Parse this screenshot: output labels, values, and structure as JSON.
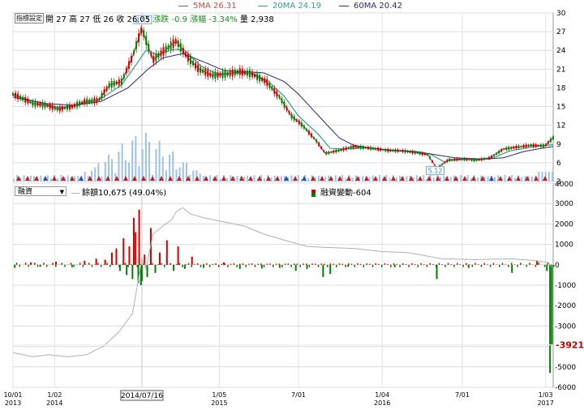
{
  "legend": [
    {
      "label": "5MA 26.31",
      "color": "#c0504d"
    },
    {
      "label": "20MA 24.19",
      "color": "#2e9e8a"
    },
    {
      "label": "60MA 20.42",
      "color": "#2b2b6b"
    }
  ],
  "toolbar": {
    "settings_label": "指標設定"
  },
  "info": {
    "open": "開 27",
    "high": "高 27",
    "low": "低 26",
    "close": "收 26.05",
    "change": "漲跌 -0.9",
    "pct": "漲幅 -3.34%",
    "volume": "量 2,938"
  },
  "lower_panel": {
    "selector_value": "融資",
    "balance_label": "餘額10,675 (49.04%)",
    "change_label": "融資變動-604",
    "current_value_label": "-3921"
  },
  "colors": {
    "up": "#d00000",
    "down": "#008000",
    "ma5": "#c0504d",
    "ma20": "#2e9e8a",
    "ma60": "#2b2b6b",
    "volume": "#9ec3e6",
    "balance_line": "#b0b0b0"
  },
  "chart_data": [
    {
      "type": "line",
      "ylim": [
        3,
        30
      ],
      "yticks": [
        3,
        6,
        9,
        12,
        15,
        18,
        21,
        24,
        27,
        30
      ],
      "annotations": [
        {
          "label": "27.5",
          "date": "2014-07-16",
          "value": 27.5
        },
        {
          "label": "5.12",
          "date": "2016-05-05",
          "value": 5.12
        }
      ],
      "series": [
        {
          "name": "5MA",
          "color": "#c0504d",
          "points": [
            [
              "2013-10-01",
              17.0
            ],
            [
              "2013-11-15",
              15.5
            ],
            [
              "2013-12-15",
              15.2
            ],
            [
              "2014-01-10",
              14.6
            ],
            [
              "2014-02-10",
              15.0
            ],
            [
              "2014-03-10",
              15.8
            ],
            [
              "2014-04-10",
              16.0
            ],
            [
              "2014-05-05",
              18.5
            ],
            [
              "2014-06-01",
              19.0
            ],
            [
              "2014-06-25",
              23.0
            ],
            [
              "2014-07-16",
              27.5
            ],
            [
              "2014-08-10",
              22.5
            ],
            [
              "2014-09-05",
              24.0
            ],
            [
              "2014-10-01",
              25.5
            ],
            [
              "2014-10-25",
              23.0
            ],
            [
              "2014-11-20",
              21.0
            ],
            [
              "2014-12-20",
              20.0
            ],
            [
              "2015-01-20",
              20.2
            ],
            [
              "2015-02-20",
              20.6
            ],
            [
              "2015-03-20",
              20.2
            ],
            [
              "2015-04-20",
              19.0
            ],
            [
              "2015-05-20",
              16.5
            ],
            [
              "2015-06-15",
              13.5
            ],
            [
              "2015-07-10",
              12.0
            ],
            [
              "2015-08-10",
              9.5
            ],
            [
              "2015-08-30",
              7.5
            ],
            [
              "2015-10-01",
              8.0
            ],
            [
              "2015-11-01",
              8.6
            ],
            [
              "2015-12-01",
              8.4
            ],
            [
              "2016-01-15",
              8.0
            ],
            [
              "2016-02-20",
              7.9
            ],
            [
              "2016-03-20",
              7.6
            ],
            [
              "2016-04-15",
              7.3
            ],
            [
              "2016-05-05",
              5.12
            ],
            [
              "2016-06-01",
              6.5
            ],
            [
              "2016-07-01",
              6.6
            ],
            [
              "2016-08-01",
              6.4
            ],
            [
              "2016-09-01",
              6.8
            ],
            [
              "2016-10-01",
              8.2
            ],
            [
              "2016-10-30",
              8.5
            ],
            [
              "2016-12-01",
              8.8
            ],
            [
              "2017-01-01",
              8.7
            ],
            [
              "2017-01-20",
              10.0
            ]
          ]
        },
        {
          "name": "20MA",
          "color": "#2e9e8a",
          "points": [
            [
              "2013-10-01",
              16.8
            ],
            [
              "2013-12-01",
              15.6
            ],
            [
              "2014-01-15",
              14.8
            ],
            [
              "2014-03-01",
              15.4
            ],
            [
              "2014-04-15",
              16.2
            ],
            [
              "2014-06-01",
              18.5
            ],
            [
              "2014-07-01",
              21.5
            ],
            [
              "2014-07-25",
              24.0
            ],
            [
              "2014-08-20",
              23.3
            ],
            [
              "2014-09-25",
              24.2
            ],
            [
              "2014-10-20",
              24.0
            ],
            [
              "2014-11-25",
              21.5
            ],
            [
              "2015-01-01",
              20.2
            ],
            [
              "2015-02-15",
              20.4
            ],
            [
              "2015-03-20",
              20.3
            ],
            [
              "2015-04-25",
              19.0
            ],
            [
              "2015-06-01",
              16.5
            ],
            [
              "2015-07-01",
              13.5
            ],
            [
              "2015-08-15",
              10.5
            ],
            [
              "2015-09-10",
              8.3
            ],
            [
              "2015-10-20",
              8.2
            ],
            [
              "2015-12-01",
              8.4
            ],
            [
              "2016-01-20",
              8.0
            ],
            [
              "2016-03-01",
              7.8
            ],
            [
              "2016-04-20",
              7.4
            ],
            [
              "2016-05-20",
              6.2
            ],
            [
              "2016-07-01",
              6.5
            ],
            [
              "2016-09-01",
              6.6
            ],
            [
              "2016-10-15",
              7.9
            ],
            [
              "2016-12-01",
              8.5
            ],
            [
              "2017-01-20",
              8.9
            ]
          ]
        },
        {
          "name": "60MA",
          "color": "#2b2b6b",
          "points": [
            [
              "2013-10-01",
              16.5
            ],
            [
              "2013-12-15",
              15.5
            ],
            [
              "2014-02-15",
              15.2
            ],
            [
              "2014-04-15",
              15.8
            ],
            [
              "2014-06-15",
              18.0
            ],
            [
              "2014-07-30",
              21.0
            ],
            [
              "2014-09-01",
              22.8
            ],
            [
              "2014-10-15",
              23.5
            ],
            [
              "2014-11-30",
              22.2
            ],
            [
              "2015-01-15",
              20.8
            ],
            [
              "2015-03-01",
              20.6
            ],
            [
              "2015-04-15",
              20.4
            ],
            [
              "2015-05-30",
              19.0
            ],
            [
              "2015-07-01",
              17.0
            ],
            [
              "2015-08-15",
              13.5
            ],
            [
              "2015-09-30",
              10.0
            ],
            [
              "2015-11-01",
              8.8
            ],
            [
              "2015-12-15",
              8.3
            ],
            [
              "2016-02-01",
              8.0
            ],
            [
              "2016-03-20",
              7.8
            ],
            [
              "2016-05-01",
              7.3
            ],
            [
              "2016-06-15",
              6.8
            ],
            [
              "2016-08-15",
              6.6
            ],
            [
              "2016-10-01",
              6.8
            ],
            [
              "2016-11-15",
              7.8
            ],
            [
              "2017-01-01",
              8.4
            ],
            [
              "2017-01-20",
              8.6
            ]
          ]
        }
      ]
    },
    {
      "type": "bar",
      "ylim": [
        -6000,
        4000
      ],
      "yticks": [
        -6000,
        -5000,
        -4000,
        -3000,
        -2000,
        -1000,
        0,
        1000,
        2000,
        3000,
        4000
      ],
      "series": [
        {
          "name": "融資變動",
          "points": [
            [
              "2013-10-05",
              -150
            ],
            [
              "2013-11-10",
              120
            ],
            [
              "2013-12-01",
              -100
            ],
            [
              "2014-01-05",
              150
            ],
            [
              "2014-02-10",
              -120
            ],
            [
              "2014-03-10",
              200
            ],
            [
              "2014-04-05",
              300
            ],
            [
              "2014-04-25",
              250
            ],
            [
              "2014-05-10",
              600
            ],
            [
              "2014-05-20",
              800
            ],
            [
              "2014-05-28",
              -300
            ],
            [
              "2014-06-05",
              1300
            ],
            [
              "2014-06-12",
              -500
            ],
            [
              "2014-06-18",
              900
            ],
            [
              "2014-06-25",
              -700
            ],
            [
              "2014-06-28",
              2300
            ],
            [
              "2014-07-02",
              1600
            ],
            [
              "2014-07-08",
              -900
            ],
            [
              "2014-07-10",
              2700
            ],
            [
              "2014-07-14",
              -1000
            ],
            [
              "2014-07-16",
              -800
            ],
            [
              "2014-07-22",
              500
            ],
            [
              "2014-07-28",
              -600
            ],
            [
              "2014-08-05",
              1800
            ],
            [
              "2014-08-15",
              -400
            ],
            [
              "2014-08-25",
              600
            ],
            [
              "2014-09-10",
              1200
            ],
            [
              "2014-09-25",
              -300
            ],
            [
              "2014-10-05",
              900
            ],
            [
              "2014-10-20",
              -200
            ],
            [
              "2014-11-05",
              400
            ],
            [
              "2014-12-01",
              -150
            ],
            [
              "2015-01-15",
              120
            ],
            [
              "2015-02-20",
              -200
            ],
            [
              "2015-04-10",
              -180
            ],
            [
              "2015-05-20",
              -150
            ],
            [
              "2015-06-25",
              -300
            ],
            [
              "2015-07-20",
              -200
            ],
            [
              "2015-08-25",
              -600
            ],
            [
              "2015-09-10",
              -450
            ],
            [
              "2015-10-20",
              -100
            ],
            [
              "2016-02-01",
              -120
            ],
            [
              "2016-05-05",
              -700
            ],
            [
              "2016-07-15",
              -150
            ],
            [
              "2016-10-20",
              -400
            ],
            [
              "2016-12-15",
              200
            ],
            [
              "2017-01-06",
              -300
            ],
            [
              "2017-01-13",
              -5300
            ],
            [
              "2017-01-17",
              -3921
            ]
          ]
        },
        {
          "name": "餘額",
          "points": [
            [
              "2013-10-01",
              -4300
            ],
            [
              "2013-11-15",
              -4500
            ],
            [
              "2013-12-20",
              -4400
            ],
            [
              "2014-02-01",
              -4500
            ],
            [
              "2014-03-15",
              -4400
            ],
            [
              "2014-04-20",
              -4000
            ],
            [
              "2014-05-25",
              -3300
            ],
            [
              "2014-06-25",
              -2400
            ],
            [
              "2014-07-10",
              -500
            ],
            [
              "2014-07-16",
              300
            ],
            [
              "2014-07-25",
              -200
            ],
            [
              "2014-08-10",
              1500
            ],
            [
              "2014-09-01",
              1900
            ],
            [
              "2014-09-20",
              2200
            ],
            [
              "2014-10-01",
              2600
            ],
            [
              "2014-10-15",
              2800
            ],
            [
              "2014-11-01",
              2500
            ],
            [
              "2014-12-01",
              2300
            ],
            [
              "2015-01-15",
              2100
            ],
            [
              "2015-03-01",
              1900
            ],
            [
              "2015-04-15",
              1500
            ],
            [
              "2015-06-01",
              1200
            ],
            [
              "2015-07-20",
              900
            ],
            [
              "2015-09-01",
              850
            ],
            [
              "2015-11-01",
              800
            ],
            [
              "2016-01-01",
              650
            ],
            [
              "2016-03-01",
              600
            ],
            [
              "2016-05-15",
              300
            ],
            [
              "2016-08-01",
              250
            ],
            [
              "2016-10-15",
              300
            ],
            [
              "2016-12-15",
              200
            ],
            [
              "2017-01-10",
              100
            ],
            [
              "2017-01-17",
              -100
            ]
          ]
        }
      ]
    }
  ],
  "axes": {
    "x_ticks": [
      {
        "label": "10/01\n2013",
        "date": "2013-10-01"
      },
      {
        "label": "1/02\n2014",
        "date": "2014-01-02"
      },
      {
        "label": "1/05\n2015",
        "date": "2015-01-05"
      },
      {
        "label": "7/01",
        "date": "2015-07-01"
      },
      {
        "label": "1/04\n2016",
        "date": "2016-01-04"
      },
      {
        "label": "7/01",
        "date": "2016-07-01"
      },
      {
        "label": "1/03\n2017",
        "date": "2017-01-03"
      }
    ],
    "cursor": {
      "label": "2014/07/16",
      "date": "2014-07-16"
    }
  }
}
